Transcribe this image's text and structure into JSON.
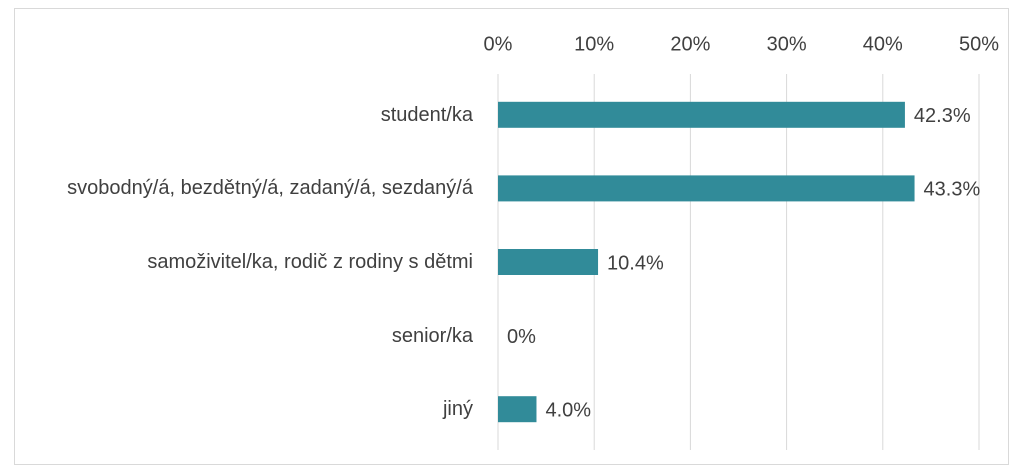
{
  "chart_data": {
    "type": "bar",
    "orientation": "horizontal",
    "categories": [
      "student/ka",
      "svobodný/á, bezdětný/á, zadaný/á, sezdaný/á",
      "samoživitel/ka, rodič z rodiny s dětmi",
      "senior/ka",
      "jiný"
    ],
    "values": [
      42.3,
      43.3,
      10.4,
      0,
      4.0
    ],
    "value_labels": [
      "42.3%",
      "43.3%",
      "10.4%",
      "0%",
      "4.0%"
    ],
    "color": "#318b99",
    "xlim": [
      0,
      50
    ],
    "xticks": [
      {
        "value": 0,
        "label": "0%"
      },
      {
        "value": 10,
        "label": "10%"
      },
      {
        "value": 20,
        "label": "20%"
      },
      {
        "value": 30,
        "label": "30%"
      },
      {
        "value": 40,
        "label": "40%"
      },
      {
        "value": 50,
        "label": "50%"
      }
    ],
    "grid": true
  }
}
